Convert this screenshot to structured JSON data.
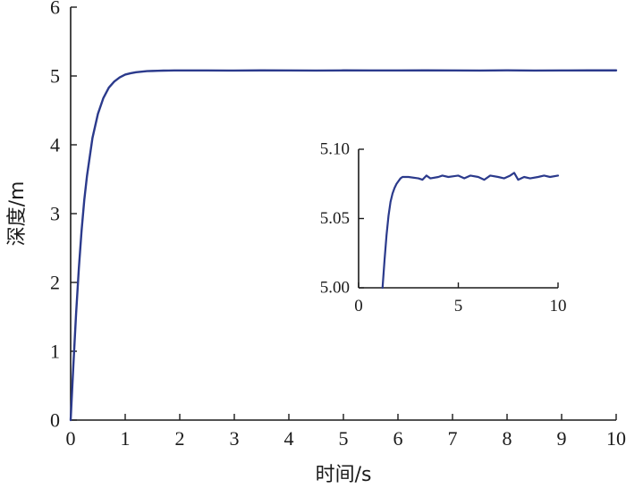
{
  "chart_data": [
    {
      "type": "line",
      "title": "",
      "xlabel": "时间/s",
      "ylabel": "深度/m",
      "xlim": [
        0,
        10
      ],
      "ylim": [
        0,
        6
      ],
      "xticks": [
        0,
        1,
        2,
        3,
        4,
        5,
        6,
        7,
        8,
        9,
        10
      ],
      "yticks": [
        0,
        1,
        2,
        3,
        4,
        5,
        6
      ],
      "xtick_labels": [
        "0",
        "1",
        "2",
        "3",
        "4",
        "5",
        "6",
        "7",
        "8",
        "9",
        "10"
      ],
      "ytick_labels": [
        "0",
        "1",
        "2",
        "3",
        "4",
        "5",
        "6"
      ],
      "grid": false,
      "legend": "none",
      "color": "#2b3a8c",
      "series": [
        {
          "x": [
            0,
            0.05,
            0.1,
            0.15,
            0.2,
            0.25,
            0.3,
            0.4,
            0.5,
            0.6,
            0.7,
            0.8,
            0.9,
            1.0,
            1.1,
            1.2,
            1.3,
            1.4,
            1.5,
            1.6,
            1.7,
            1.8,
            1.9,
            2.0,
            2.5,
            3.0,
            3.5,
            4.0,
            4.5,
            5.0,
            5.5,
            6.0,
            6.5,
            7.0,
            7.5,
            8.0,
            8.5,
            9.0,
            9.5,
            10.0
          ],
          "y": [
            0,
            0.8,
            1.55,
            2.2,
            2.75,
            3.2,
            3.55,
            4.1,
            4.45,
            4.68,
            4.83,
            4.92,
            4.98,
            5.02,
            5.04,
            5.055,
            5.063,
            5.07,
            5.073,
            5.076,
            5.078,
            5.079,
            5.08,
            5.08,
            5.08,
            5.079,
            5.081,
            5.08,
            5.079,
            5.081,
            5.08,
            5.08,
            5.081,
            5.08,
            5.079,
            5.082,
            5.079,
            5.08,
            5.081,
            5.081
          ]
        }
      ]
    },
    {
      "type": "line",
      "title": "",
      "xlabel": "",
      "ylabel": "",
      "xlim": [
        0,
        10
      ],
      "ylim": [
        5.0,
        5.1
      ],
      "xticks": [
        0,
        5,
        10
      ],
      "yticks": [
        5.0,
        5.05,
        5.1
      ],
      "xtick_labels": [
        "0",
        "5",
        "10"
      ],
      "ytick_labels": [
        "5.00",
        "5.05",
        "5.10"
      ],
      "grid": false,
      "legend": "none",
      "color": "#2b3a8c",
      "series": [
        {
          "x": [
            1.2,
            1.3,
            1.4,
            1.5,
            1.6,
            1.7,
            1.8,
            1.9,
            2.0,
            2.1,
            2.2,
            2.3,
            2.5,
            3.0,
            3.2,
            3.4,
            3.6,
            4.0,
            4.2,
            4.5,
            5.0,
            5.3,
            5.6,
            6.0,
            6.3,
            6.6,
            7.0,
            7.3,
            7.6,
            7.8,
            8.0,
            8.3,
            8.6,
            9.0,
            9.3,
            9.6,
            10.0
          ],
          "y": [
            5.0,
            5.02,
            5.038,
            5.052,
            5.062,
            5.068,
            5.072,
            5.075,
            5.077,
            5.079,
            5.08,
            5.08,
            5.08,
            5.079,
            5.078,
            5.081,
            5.079,
            5.08,
            5.081,
            5.08,
            5.081,
            5.079,
            5.081,
            5.08,
            5.078,
            5.081,
            5.08,
            5.079,
            5.081,
            5.083,
            5.078,
            5.08,
            5.079,
            5.08,
            5.081,
            5.08,
            5.081
          ]
        }
      ]
    }
  ]
}
